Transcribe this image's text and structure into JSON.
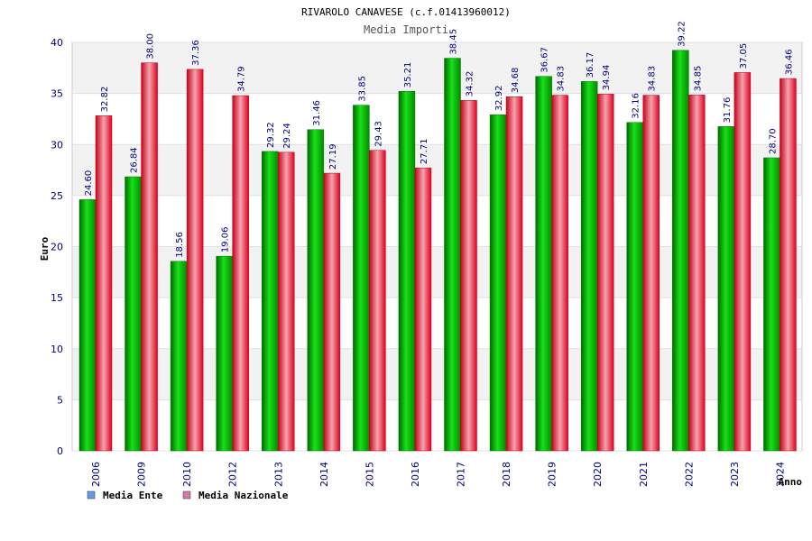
{
  "chart_data": {
    "type": "bar",
    "title": "RIVAROLO CANAVESE (c.f.01413960012)",
    "subtitle": "Media Importi",
    "xlabel": "Anno",
    "ylabel": "Euro",
    "ylim": [
      0,
      40
    ],
    "yticks": [
      "0",
      "5",
      "10",
      "15",
      "20",
      "25",
      "30",
      "35",
      "40"
    ],
    "categories": [
      "2006",
      "2009",
      "2010",
      "2012",
      "2013",
      "2014",
      "2015",
      "2016",
      "2017",
      "2018",
      "2019",
      "2020",
      "2021",
      "2022",
      "2023",
      "2024"
    ],
    "series": [
      {
        "name": "Media Ente",
        "color": "#00c000",
        "legend_color": "#5f9ee0",
        "values": [
          24.6,
          26.84,
          18.56,
          19.06,
          29.32,
          31.46,
          33.85,
          35.21,
          38.45,
          32.92,
          36.67,
          36.17,
          32.16,
          39.22,
          31.76,
          28.7
        ],
        "labels": [
          "24.60",
          "26.84",
          "18.56",
          "19.06",
          "29.32",
          "31.46",
          "33.85",
          "35.21",
          "38.45",
          "32.92",
          "36.67",
          "36.17",
          "32.16",
          "39.22",
          "31.76",
          "28.70"
        ]
      },
      {
        "name": "Media Nazionale",
        "color": "#e8102a",
        "legend_color": "#d777a8",
        "values": [
          32.82,
          38.0,
          37.36,
          34.79,
          29.24,
          27.19,
          29.43,
          27.71,
          34.32,
          34.68,
          34.83,
          34.94,
          34.83,
          34.85,
          37.05,
          36.46
        ],
        "labels": [
          "32.82",
          "38.00",
          "37.36",
          "34.79",
          "29.24",
          "27.19",
          "29.43",
          "27.71",
          "34.32",
          "34.68",
          "34.83",
          "34.94",
          "34.83",
          "34.85",
          "37.05",
          "36.46"
        ]
      }
    ],
    "grid": true,
    "legend_position": "bottom-left"
  }
}
